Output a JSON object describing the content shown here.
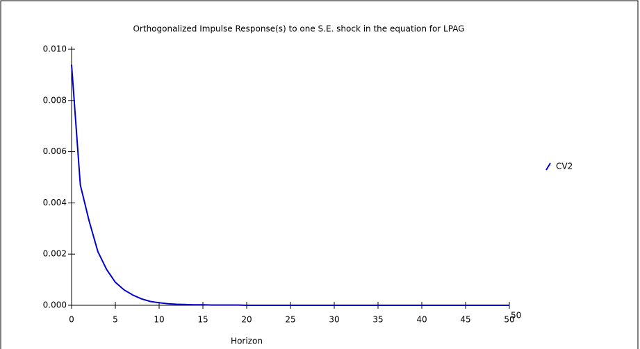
{
  "chart_data": {
    "type": "line",
    "title": "Orthogonalized Impulse Response(s) to one S.E. shock in the equation for LPAG",
    "x_label": "Horizon",
    "x": [
      0,
      1,
      2,
      3,
      4,
      5,
      6,
      7,
      8,
      9,
      10,
      11,
      12,
      13,
      14,
      15,
      16,
      17,
      18,
      19,
      20,
      21,
      22,
      23,
      24,
      25,
      26,
      27,
      28,
      29,
      30,
      31,
      32,
      33,
      34,
      35,
      36,
      37,
      38,
      39,
      40,
      41,
      42,
      43,
      44,
      45,
      46,
      47,
      48,
      49,
      50
    ],
    "series": [
      {
        "name": "CV2",
        "color": "#0000cc",
        "values": [
          0.0094,
          0.0047,
          0.0033,
          0.0021,
          0.0014,
          0.0009,
          0.0006,
          0.0004,
          0.00025,
          0.00015,
          0.0001,
          6e-05,
          4e-05,
          3e-05,
          2e-05,
          2e-05,
          1e-05,
          1e-05,
          1e-05,
          1e-05,
          0,
          0,
          0,
          0,
          0,
          0,
          0,
          0,
          0,
          0,
          0,
          0,
          0,
          0,
          0,
          0,
          0,
          0,
          0,
          0,
          0,
          0,
          0,
          0,
          0,
          0,
          0,
          0,
          0,
          0,
          0
        ]
      }
    ],
    "xlim": [
      0,
      50
    ],
    "xticks": [
      0,
      5,
      10,
      15,
      20,
      25,
      30,
      35,
      40,
      45,
      50
    ],
    "ylim": [
      0,
      0.01
    ],
    "yticks": [
      {
        "value": 0,
        "label": "0.000"
      },
      {
        "value": 0.002,
        "label": "0.002"
      },
      {
        "value": 0.004,
        "label": "0.004"
      },
      {
        "value": 0.006,
        "label": "0.006"
      },
      {
        "value": 0.008,
        "label": "0.008"
      },
      {
        "value": 0.01,
        "label": "0.010"
      }
    ],
    "legend": "right"
  }
}
